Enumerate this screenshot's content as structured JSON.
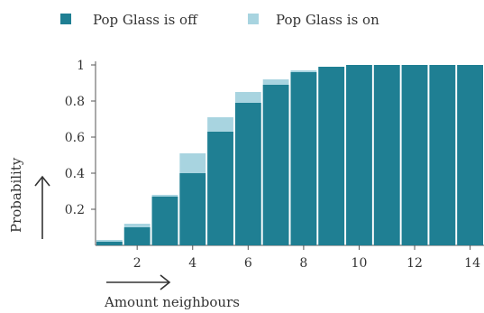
{
  "chart_data": {
    "type": "bar",
    "x": [
      1,
      2,
      3,
      4,
      5,
      6,
      7,
      8,
      9,
      10,
      11,
      12,
      13,
      14
    ],
    "series": [
      {
        "name": "Pop Glass is off",
        "color": "#1f7f93",
        "values": [
          0.02,
          0.1,
          0.27,
          0.4,
          0.63,
          0.79,
          0.89,
          0.96,
          0.99,
          1.0,
          1.0,
          1.0,
          1.0,
          1.0
        ]
      },
      {
        "name": "Pop Glass is on",
        "color": "#a8d4e0",
        "values": [
          0.03,
          0.12,
          0.28,
          0.51,
          0.71,
          0.85,
          0.92,
          0.97,
          0.99,
          1.0,
          1.0,
          1.0,
          1.0,
          1.0
        ]
      }
    ],
    "xticks": [
      "2",
      "4",
      "6",
      "8",
      "10",
      "12",
      "14"
    ],
    "xtick_values": [
      2,
      4,
      6,
      8,
      10,
      12,
      14
    ],
    "yticks": [
      "0.2",
      "0.4",
      "0.6",
      "0.8",
      "1"
    ],
    "ytick_values": [
      0.2,
      0.4,
      0.6,
      0.8,
      1.0
    ],
    "xlabel": "Amount neighbours",
    "ylabel": "Probability",
    "ylim": [
      0,
      1
    ],
    "xlim": [
      0.5,
      14.5
    ],
    "legend_position": "top",
    "grid": false,
    "axis_color": "#555555"
  }
}
